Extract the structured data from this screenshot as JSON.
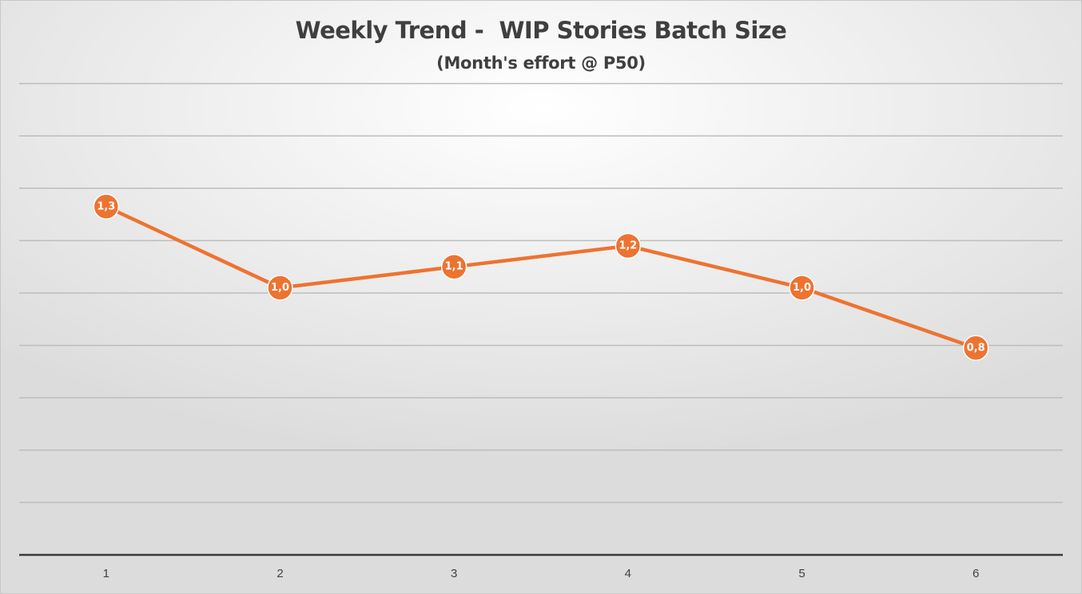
{
  "chart_data": {
    "type": "line",
    "title": "Weekly Trend -  WIP Stories Batch Size",
    "subtitle": "(Month's effort @ P50)",
    "xlabel": "",
    "ylabel": "",
    "categories": [
      "1",
      "2",
      "3",
      "4",
      "5",
      "6"
    ],
    "series": [
      {
        "values": [
          1.33,
          1.02,
          1.1,
          1.18,
          1.02,
          0.79
        ],
        "labels": [
          "1,3",
          "1,0",
          "1,1",
          "1,2",
          "1,0",
          "0,8"
        ],
        "color": "#ED7331"
      }
    ],
    "ylim": [
      0,
      1.75
    ],
    "grid_step": 0.2,
    "grid": true,
    "legend": "none",
    "y_tick_labels_shown": false
  }
}
